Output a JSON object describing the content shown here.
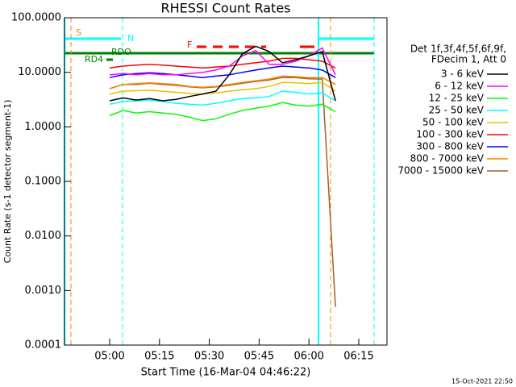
{
  "chart_data": {
    "type": "line",
    "title": "RHESSI Count Rates",
    "x_label": "Start Time (16-Mar-04 04:46:22)",
    "y_label": "Count Rate (s-1 detector segment-1)",
    "legend_title": [
      "Det 1f,3f,4f,5f,6f,9f,",
      "FDecim 1, Att 0"
    ],
    "annotations": [
      "S",
      "N",
      "F",
      "RD4",
      "RDO"
    ],
    "timestamp": "15-Oct-2021 22:50",
    "log_y": true,
    "xlim": [
      286.4,
      383.5
    ],
    "xticks": [
      {
        "value": 300,
        "label": "05:00"
      },
      {
        "value": 315,
        "label": "05:15"
      },
      {
        "value": 330,
        "label": "05:30"
      },
      {
        "value": 345,
        "label": "05:45"
      },
      {
        "value": 360,
        "label": "06:00"
      },
      {
        "value": 375,
        "label": "06:15"
      }
    ],
    "ylim": [
      0.0001,
      100
    ],
    "yticks": [
      {
        "value": 100,
        "label": "100.0000"
      },
      {
        "value": 10,
        "label": "10.0000"
      },
      {
        "value": 1,
        "label": "1.0000"
      },
      {
        "value": 0.1,
        "label": "0.1000"
      },
      {
        "value": 0.01,
        "label": "0.0100"
      },
      {
        "value": 0.001,
        "label": "0.0010"
      },
      {
        "value": 0.0001,
        "label": "0.0001"
      }
    ],
    "x": [
      300,
      304,
      308,
      312,
      316,
      320,
      324,
      328,
      332,
      336,
      340,
      344,
      348,
      352,
      356,
      360,
      364,
      368
    ],
    "series": [
      {
        "name": "3 - 6 keV",
        "color": "#000000",
        "values": [
          3,
          3.4,
          3.1,
          3.3,
          3,
          3.2,
          3.6,
          4,
          4.5,
          9,
          22,
          30,
          24,
          15,
          17,
          20,
          24,
          3
        ]
      },
      {
        "name": "6 - 12 keV",
        "color": "#ff00ff",
        "values": [
          9,
          9.5,
          9,
          9.5,
          9,
          9,
          9.5,
          10,
          11,
          13,
          20,
          25,
          14,
          14,
          16,
          20,
          28,
          9
        ]
      },
      {
        "name": "12 - 25 keV",
        "color": "#00ff00",
        "values": [
          1.6,
          2,
          1.8,
          1.9,
          1.8,
          1.7,
          1.5,
          1.3,
          1.4,
          1.7,
          2,
          2.2,
          2.4,
          2.8,
          2.5,
          2.4,
          2.6,
          1.9
        ]
      },
      {
        "name": "25 - 50 keV",
        "color": "#00ffff",
        "values": [
          2.6,
          2.9,
          3,
          3.1,
          2.9,
          2.7,
          2.6,
          2.5,
          2.7,
          3,
          3.3,
          3.4,
          3.6,
          4.5,
          4.3,
          4,
          4.2,
          3
        ]
      },
      {
        "name": "50 - 100 keV",
        "color": "#e8c000",
        "values": [
          4,
          4.5,
          4.6,
          4.7,
          4.5,
          4.3,
          4.1,
          4,
          4.2,
          4.5,
          4.8,
          5,
          5.5,
          6.5,
          6.4,
          6.2,
          6.5,
          4.5
        ]
      },
      {
        "name": "100 - 300 keV",
        "color": "#ff0000",
        "values": [
          12,
          13,
          13.5,
          14,
          13.5,
          13,
          12.5,
          12,
          12.5,
          13,
          14,
          15,
          16,
          18,
          18,
          17,
          16,
          12
        ]
      },
      {
        "name": "300 - 800 keV",
        "color": "#0000ff",
        "values": [
          8,
          9,
          9.5,
          9.8,
          9.5,
          9,
          8.5,
          8,
          8.5,
          9,
          10,
          11,
          12,
          13,
          12.5,
          12,
          11,
          8
        ]
      },
      {
        "name": "800 - 7000 keV",
        "color": "#ff8000",
        "values": [
          5,
          6,
          6.2,
          6.4,
          6.2,
          6,
          5.5,
          5.3,
          5.5,
          6,
          6.5,
          7,
          7.5,
          8.5,
          8.3,
          8,
          8,
          6
        ]
      },
      {
        "name": "7000 - 15000 keV",
        "color": "#a0602a",
        "values": [
          5,
          6,
          6,
          6.3,
          6,
          5.8,
          5.4,
          5.2,
          5.4,
          5.8,
          6.3,
          6.8,
          7.2,
          8,
          8,
          7.6,
          7.5,
          0.0005
        ]
      }
    ]
  }
}
